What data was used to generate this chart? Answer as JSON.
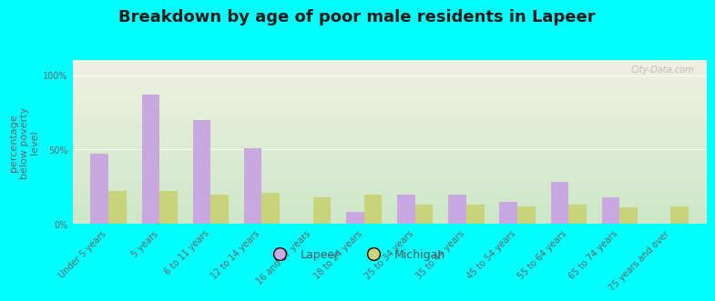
{
  "title": "Breakdown by age of poor male residents in Lapeer",
  "ylabel": "percentage\nbelow poverty\nlevel",
  "categories": [
    "Under 5 years",
    "5 years",
    "6 to 11 years",
    "12 to 14 years",
    "16 and 17 years",
    "18 to 24 years",
    "25 to 34 years",
    "35 to 44 years",
    "45 to 54 years",
    "55 to 64 years",
    "65 to 74 years",
    "75 years and over"
  ],
  "lapeer_values": [
    47,
    87,
    70,
    51,
    0,
    8,
    20,
    20,
    15,
    28,
    18,
    0
  ],
  "michigan_values": [
    22,
    22,
    20,
    21,
    18,
    20,
    13,
    13,
    12,
    13,
    11,
    12
  ],
  "lapeer_color": "#c9a8e0",
  "michigan_color": "#c8d47a",
  "background_color": "#00ffff",
  "plot_bg_top": "#f0f0e0",
  "plot_bg_bottom": "#cce8c8",
  "title_color": "#1a1a1a",
  "title_fontsize": 13,
  "ylabel_fontsize": 8,
  "tick_label_fontsize": 7,
  "ylim": [
    0,
    110
  ],
  "yticks": [
    0,
    50,
    100
  ],
  "ytick_labels": [
    "0%",
    "50%",
    "100%"
  ],
  "bar_width": 0.35,
  "legend_labels": [
    "Lapeer",
    "Michigan"
  ],
  "watermark_text": "City-Data.com"
}
